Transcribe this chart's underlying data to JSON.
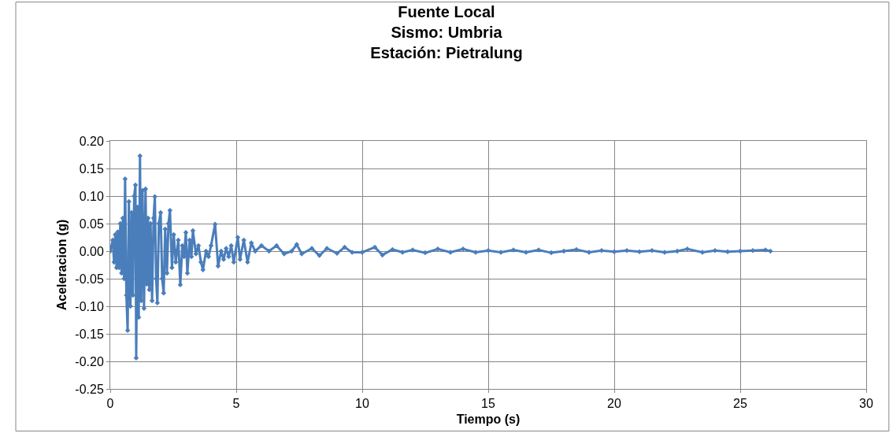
{
  "chart_data": {
    "type": "line",
    "title": "Fuente Local\nSismo: Umbria\nEstación: Pietralung",
    "xlabel": "Tiempo (s)",
    "ylabel": "Aceleracion (g)",
    "x": [
      0,
      0.1,
      0.15,
      0.2,
      0.25,
      0.3,
      0.35,
      0.4,
      0.45,
      0.5,
      0.55,
      0.59,
      0.64,
      0.69,
      0.74,
      0.8,
      0.85,
      0.9,
      0.95,
      1.0,
      1.03,
      1.08,
      1.13,
      1.18,
      1.23,
      1.28,
      1.34,
      1.4,
      1.45,
      1.5,
      1.55,
      1.6,
      1.66,
      1.72,
      1.77,
      1.82,
      1.87,
      1.93,
      2.0,
      2.06,
      2.12,
      2.18,
      2.25,
      2.31,
      2.37,
      2.45,
      2.52,
      2.6,
      2.7,
      2.78,
      2.86,
      2.93,
      3.0,
      3.06,
      3.15,
      3.22,
      3.28,
      3.4,
      3.5,
      3.6,
      3.68,
      3.8,
      3.9,
      4.0,
      4.16,
      4.28,
      4.4,
      4.5,
      4.6,
      4.7,
      4.8,
      4.9,
      5.06,
      5.15,
      5.3,
      5.45,
      5.6,
      5.75,
      6.0,
      6.3,
      6.6,
      6.9,
      7.2,
      7.4,
      7.6,
      8.0,
      8.3,
      8.6,
      9.0,
      9.3,
      9.6,
      10.0,
      10.5,
      10.8,
      11.2,
      11.6,
      12.0,
      12.5,
      13.0,
      13.5,
      14.0,
      14.5,
      15.0,
      15.5,
      16.0,
      16.5,
      17.0,
      17.5,
      18.0,
      18.5,
      19.0,
      19.5,
      20.0,
      20.5,
      21.0,
      21.5,
      22.0,
      22.5,
      22.9,
      23.5,
      24.0,
      24.5,
      25.0,
      25.5,
      26.0,
      26.2
    ],
    "series": [
      {
        "color": "#4a7ebb",
        "values": [
          0.0,
          0.02,
          -0.02,
          0.03,
          -0.03,
          0.035,
          -0.03,
          0.05,
          -0.04,
          0.06,
          -0.05,
          0.131,
          -0.08,
          -0.144,
          0.09,
          -0.1,
          0.07,
          -0.08,
          0.1,
          0.12,
          -0.194,
          0.08,
          -0.12,
          0.173,
          -0.09,
          0.11,
          -0.104,
          0.113,
          -0.06,
          0.06,
          -0.07,
          0.05,
          -0.09,
          0.06,
          0.099,
          -0.05,
          -0.094,
          0.05,
          0.07,
          -0.05,
          -0.076,
          0.04,
          -0.04,
          0.05,
          0.074,
          -0.03,
          0.03,
          -0.02,
          0.02,
          -0.061,
          0.01,
          -0.01,
          0.034,
          -0.04,
          0.02,
          -0.01,
          0.037,
          -0.005,
          0.01,
          -0.02,
          -0.034,
          0.0,
          -0.01,
          0.01,
          0.049,
          -0.027,
          0.0,
          -0.015,
          0.005,
          -0.01,
          0.01,
          -0.02,
          0.025,
          -0.015,
          0.02,
          -0.02,
          0.015,
          0.0,
          0.01,
          0.0,
          0.01,
          -0.005,
          0.0,
          0.012,
          -0.005,
          0.005,
          -0.008,
          0.005,
          -0.004,
          0.007,
          -0.002,
          -0.002,
          0.007,
          -0.007,
          0.003,
          -0.002,
          0.002,
          -0.003,
          0.004,
          -0.002,
          0.004,
          -0.002,
          0.001,
          -0.002,
          0.002,
          -0.002,
          0.002,
          -0.003,
          0.0,
          0.003,
          -0.002,
          0.001,
          -0.001,
          0.001,
          -0.001,
          0.001,
          -0.002,
          0.0,
          0.004,
          -0.002,
          0.001,
          -0.001,
          0.0,
          0.001,
          0.002,
          0.0
        ]
      }
    ],
    "xlim": [
      0,
      30
    ],
    "xticks": [
      0,
      5,
      10,
      15,
      20,
      25,
      30
    ],
    "ylim": [
      -0.25,
      0.2
    ],
    "yticks": [
      {
        "value": -0.25,
        "label": "-0.25"
      },
      {
        "value": -0.2,
        "label": "-0.20"
      },
      {
        "value": -0.15,
        "label": "-0.15"
      },
      {
        "value": -0.1,
        "label": "-0.10"
      },
      {
        "value": -0.05,
        "label": "-0.05"
      },
      {
        "value": 0,
        "label": "0.00"
      },
      {
        "value": 0.05,
        "label": "0.05"
      },
      {
        "value": 0.1,
        "label": "0.10"
      },
      {
        "value": 0.15,
        "label": "0.15"
      },
      {
        "value": 0.2,
        "label": "0.20"
      }
    ],
    "grid": true,
    "marker": "diamond",
    "line_style": "solid"
  }
}
